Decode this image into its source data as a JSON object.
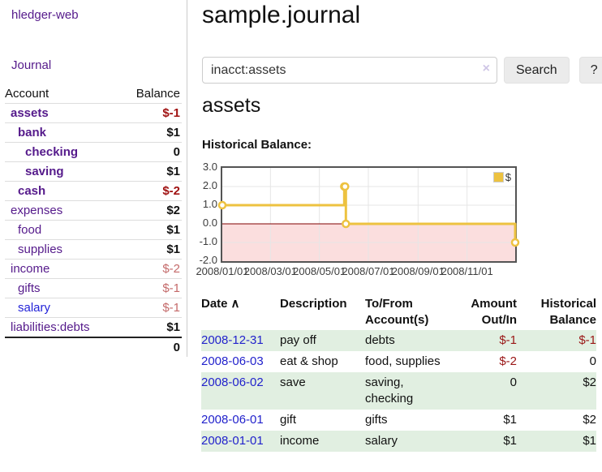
{
  "brand": "hledger-web",
  "colors": {
    "link_purple": "#551a8b",
    "link_blue": "#2323d8",
    "negative_strong": "#a01212",
    "negative_muted": "#c46a6a",
    "negative_table": "#9a1616",
    "row_stripe_green": "#e1efe1",
    "chart_line": "#edc240",
    "chart_negative_fill": "#fbdede",
    "chart_zero_line": "#7f0000"
  },
  "sidebar": {
    "nav_journal": "Journal",
    "accounts": {
      "col_account": "Account",
      "col_balance": "Balance",
      "rows": [
        {
          "account": "assets",
          "balance": "$-1",
          "level": 1,
          "bold": true,
          "neg": "strong"
        },
        {
          "account": "bank",
          "balance": "$1",
          "level": 2,
          "bold": true
        },
        {
          "account": "checking",
          "balance": "0",
          "level": 3,
          "bold": true
        },
        {
          "account": "saving",
          "balance": "$1",
          "level": 3,
          "bold": true
        },
        {
          "account": "cash",
          "balance": "$-2",
          "level": 2,
          "bold": true,
          "neg": "strong"
        },
        {
          "account": "expenses",
          "balance": "$2",
          "level": 1
        },
        {
          "account": "food",
          "balance": "$1",
          "level": 2
        },
        {
          "account": "supplies",
          "balance": "$1",
          "level": 2
        },
        {
          "account": "income",
          "balance": "$-2",
          "level": 1,
          "neg": "muted"
        },
        {
          "account": "gifts",
          "balance": "$-1",
          "level": 2,
          "neg": "muted"
        },
        {
          "account": "salary",
          "balance": "$-1",
          "level": 2,
          "neg": "muted",
          "link_color": "blue"
        },
        {
          "account": "liabilities:debts",
          "balance": "$1",
          "level": 1
        }
      ],
      "total": "0"
    }
  },
  "main": {
    "title": "sample.journal",
    "search": {
      "value": "inacct:assets",
      "clear_icon": "×",
      "search_label": "Search",
      "help_label": "?"
    },
    "account_heading": "assets",
    "chart_label": "Historical Balance:"
  },
  "chart_data": {
    "type": "line",
    "title": "Historical Balance",
    "step": true,
    "grid": true,
    "legend_position": "top-right",
    "legend": [
      {
        "label": "$",
        "color": "#edc240"
      }
    ],
    "x_range": [
      "2008-01-01",
      "2008-12-31"
    ],
    "x_tick_dates": [
      "2008-01-01",
      "2008-03-01",
      "2008-05-01",
      "2008-07-01",
      "2008-09-01",
      "2008-11-01"
    ],
    "x_tick_labels": [
      "2008/01/01",
      "2008/03/01",
      "2008/05/01",
      "2008/07/01",
      "2008/09/01",
      "2008/11/01"
    ],
    "y_ticks": [
      3.0,
      2.0,
      1.0,
      0.0,
      -1.0,
      -2.0
    ],
    "ylim": [
      -2.0,
      3.0
    ],
    "series": [
      {
        "name": "$",
        "color": "#edc240",
        "points": [
          [
            "2008-01-01",
            1
          ],
          [
            "2008-06-01",
            2
          ],
          [
            "2008-06-02",
            2
          ],
          [
            "2008-06-03",
            0
          ],
          [
            "2008-12-31",
            -1
          ]
        ]
      }
    ]
  },
  "register": {
    "sort_icon": "∧",
    "columns": [
      {
        "label": "Date",
        "align": "left",
        "sorted": "asc"
      },
      {
        "label": "Description",
        "align": "left"
      },
      {
        "label": "To/From Account(s)",
        "align": "left"
      },
      {
        "label": "Amount Out/In",
        "align": "right"
      },
      {
        "label": "Historical Balance",
        "align": "right"
      }
    ],
    "rows": [
      {
        "date": "2008-12-31",
        "description": "pay off",
        "accounts": "debts",
        "amount": "$-1",
        "balance": "$-1"
      },
      {
        "date": "2008-06-03",
        "description": "eat & shop",
        "accounts": "food, supplies",
        "amount": "$-2",
        "balance": "0"
      },
      {
        "date": "2008-06-02",
        "description": "save",
        "accounts": "saving, checking",
        "amount": "0",
        "balance": "$2"
      },
      {
        "date": "2008-06-01",
        "description": "gift",
        "accounts": "gifts",
        "amount": "$1",
        "balance": "$2"
      },
      {
        "date": "2008-01-01",
        "description": "income",
        "accounts": "salary",
        "amount": "$1",
        "balance": "$1"
      }
    ]
  }
}
